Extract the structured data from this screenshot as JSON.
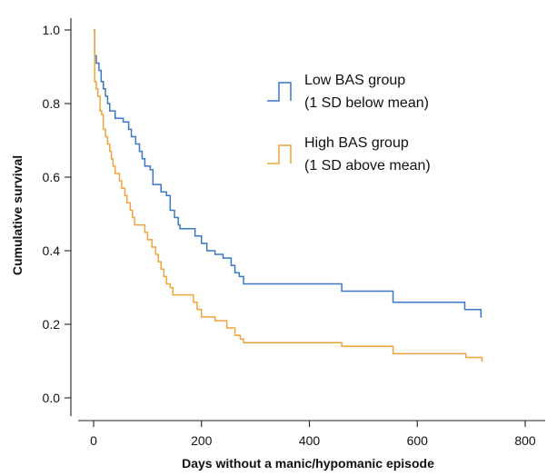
{
  "chart_data": {
    "type": "line",
    "title": "",
    "xlabel": "Days without a manic/hypomanic episode",
    "ylabel": "Cumulative survival",
    "xlim": [
      0,
      800
    ],
    "ylim": [
      0,
      1.0
    ],
    "x_ticks": [
      0,
      200,
      400,
      600,
      800
    ],
    "y_ticks": [
      0.0,
      0.2,
      0.4,
      0.6,
      0.8,
      1.0
    ],
    "x_tick_labels": [
      "0",
      "200",
      "400",
      "600",
      "800"
    ],
    "y_tick_labels": [
      "0.0",
      "0.2",
      "0.4",
      "0.6",
      "0.8",
      "1.0"
    ],
    "grid": false,
    "legend_position": "top-right",
    "series": [
      {
        "name": "Low BAS group (1 SD below mean)",
        "legend_lines": [
          "Low BAS group",
          "(1 SD below mean)"
        ],
        "color": "#3a78c3",
        "step": true,
        "points": [
          [
            0,
            1.0
          ],
          [
            2,
            0.93
          ],
          [
            5,
            0.91
          ],
          [
            10,
            0.89
          ],
          [
            14,
            0.86
          ],
          [
            18,
            0.84
          ],
          [
            22,
            0.82
          ],
          [
            26,
            0.8
          ],
          [
            30,
            0.78
          ],
          [
            40,
            0.76
          ],
          [
            55,
            0.75
          ],
          [
            65,
            0.73
          ],
          [
            70,
            0.71
          ],
          [
            78,
            0.69
          ],
          [
            85,
            0.67
          ],
          [
            90,
            0.65
          ],
          [
            95,
            0.63
          ],
          [
            105,
            0.62
          ],
          [
            110,
            0.58
          ],
          [
            120,
            0.58
          ],
          [
            125,
            0.56
          ],
          [
            135,
            0.55
          ],
          [
            142,
            0.51
          ],
          [
            150,
            0.49
          ],
          [
            157,
            0.47
          ],
          [
            160,
            0.46
          ],
          [
            185,
            0.46
          ],
          [
            188,
            0.44
          ],
          [
            200,
            0.42
          ],
          [
            210,
            0.4
          ],
          [
            225,
            0.39
          ],
          [
            240,
            0.38
          ],
          [
            255,
            0.36
          ],
          [
            262,
            0.34
          ],
          [
            270,
            0.33
          ],
          [
            278,
            0.31
          ],
          [
            460,
            0.29
          ],
          [
            555,
            0.26
          ],
          [
            688,
            0.24
          ],
          [
            718,
            0.22
          ]
        ]
      },
      {
        "name": "High BAS group (1 SD above mean)",
        "legend_lines": [
          "High BAS group",
          "(1 SD above mean)"
        ],
        "color": "#f0a43a",
        "step": true,
        "points": [
          [
            0,
            1.0
          ],
          [
            2,
            0.86
          ],
          [
            5,
            0.84
          ],
          [
            8,
            0.82
          ],
          [
            12,
            0.78
          ],
          [
            15,
            0.77
          ],
          [
            18,
            0.73
          ],
          [
            22,
            0.71
          ],
          [
            26,
            0.69
          ],
          [
            30,
            0.67
          ],
          [
            33,
            0.65
          ],
          [
            36,
            0.63
          ],
          [
            40,
            0.61
          ],
          [
            48,
            0.59
          ],
          [
            52,
            0.57
          ],
          [
            58,
            0.55
          ],
          [
            62,
            0.53
          ],
          [
            68,
            0.51
          ],
          [
            72,
            0.49
          ],
          [
            76,
            0.47
          ],
          [
            85,
            0.47
          ],
          [
            95,
            0.45
          ],
          [
            100,
            0.43
          ],
          [
            108,
            0.41
          ],
          [
            115,
            0.39
          ],
          [
            120,
            0.37
          ],
          [
            125,
            0.35
          ],
          [
            130,
            0.33
          ],
          [
            135,
            0.31
          ],
          [
            142,
            0.3
          ],
          [
            147,
            0.28
          ],
          [
            150,
            0.28
          ],
          [
            185,
            0.26
          ],
          [
            192,
            0.24
          ],
          [
            200,
            0.22
          ],
          [
            225,
            0.21
          ],
          [
            247,
            0.19
          ],
          [
            262,
            0.17
          ],
          [
            272,
            0.16
          ],
          [
            278,
            0.15
          ],
          [
            460,
            0.14
          ],
          [
            555,
            0.12
          ],
          [
            690,
            0.11
          ],
          [
            720,
            0.1
          ]
        ]
      }
    ]
  }
}
